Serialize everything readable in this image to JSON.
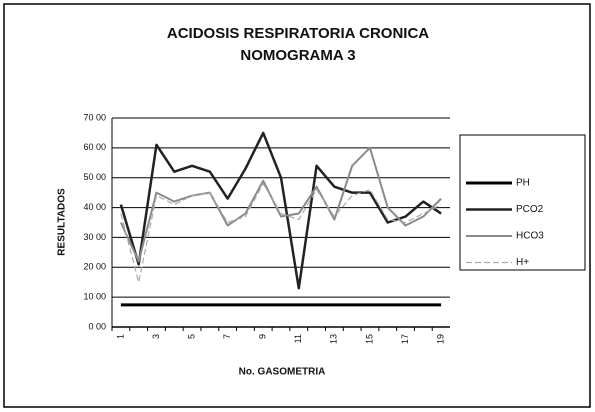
{
  "chart_data": {
    "type": "line",
    "title": [
      "ACIDOSIS RESPIRATORIA CRONICA",
      "NOMOGRAMA 3"
    ],
    "x_label": "No. GASOMETRIA",
    "y_label": "RESULTADOS",
    "categories": [
      "1",
      null,
      "3",
      null,
      "5",
      null,
      "7",
      null,
      "9",
      null,
      "11",
      null,
      "13",
      null,
      "15",
      null,
      "17",
      null,
      "19"
    ],
    "ylim": [
      0,
      70
    ],
    "yticks": [
      {
        "value": 0,
        "label": "0 00"
      },
      {
        "value": 10,
        "label": "10 00"
      },
      {
        "value": 20,
        "label": "20 00"
      },
      {
        "value": 30,
        "label": "30 00"
      },
      {
        "value": 40,
        "label": "40 00"
      },
      {
        "value": 50,
        "label": "50 00"
      },
      {
        "value": 60,
        "label": "60 00"
      },
      {
        "value": 70,
        "label": "70 00"
      }
    ],
    "grid": true,
    "legend": "right",
    "series": [
      {
        "name": "PH",
        "color": "#000000",
        "width": 3,
        "dash": "",
        "values": [
          7.4,
          7.4,
          7.4,
          7.4,
          7.4,
          7.4,
          7.4,
          7.4,
          7.4,
          7.4,
          7.4,
          7.4,
          7.4,
          7.4,
          7.4,
          7.4,
          7.4,
          7.4,
          7.4
        ]
      },
      {
        "name": "PCO2",
        "color": "#222222",
        "width": 2.5,
        "dash": "",
        "values": [
          41,
          21,
          61,
          52,
          54,
          52,
          43,
          53,
          65,
          50,
          13,
          54,
          47,
          45,
          45,
          35,
          37,
          42,
          38
        ]
      },
      {
        "name": "HCO3",
        "color": "#8a8a8a",
        "width": 2,
        "dash": "",
        "values": [
          35,
          22,
          45,
          42,
          44,
          45,
          34,
          38,
          49,
          37,
          38,
          47,
          36,
          54,
          60,
          40,
          34,
          37,
          43
        ]
      },
      {
        "name": "H+",
        "color": "#aaaaaa",
        "width": 1.2,
        "dash": "6 3",
        "values": [
          38,
          15,
          44,
          41,
          44,
          45,
          35,
          37,
          48,
          38,
          36,
          46,
          37,
          44,
          46,
          36,
          35,
          38,
          41
        ]
      }
    ]
  }
}
